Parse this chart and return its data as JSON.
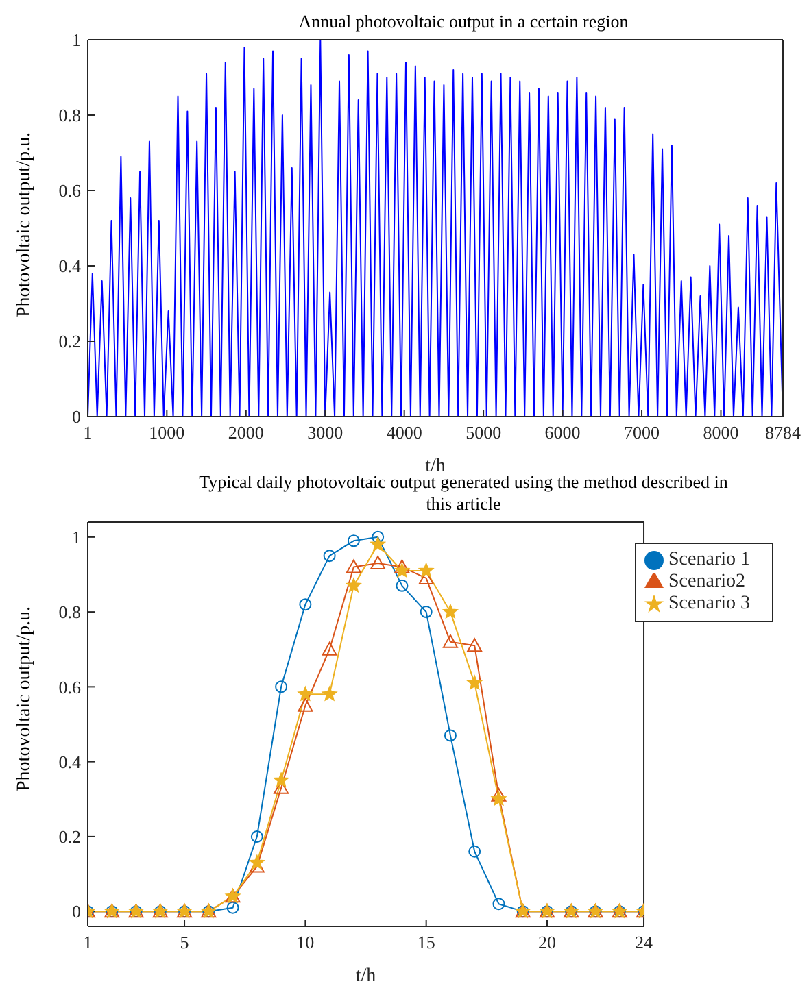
{
  "chart_data": [
    {
      "type": "line",
      "title": "Annual photovoltaic output in a certain region",
      "xlabel": "t/h",
      "ylabel": "Photovoltaic output/p.u.",
      "xlim": [
        1,
        8784
      ],
      "xticks": [
        1,
        1000,
        2000,
        3000,
        4000,
        5000,
        6000,
        7000,
        8000,
        8784
      ],
      "ylim": [
        0,
        1
      ],
      "yticks": [
        0,
        0.2,
        0.4,
        0.6,
        0.8,
        1
      ],
      "grid": false,
      "legend": false,
      "marker": "none",
      "x": [
        1,
        60,
        120,
        180,
        240,
        300,
        360,
        420,
        480,
        540,
        600,
        660,
        720,
        780,
        840,
        900,
        960,
        1020,
        1080,
        1140,
        1200,
        1260,
        1320,
        1380,
        1440,
        1500,
        1560,
        1620,
        1680,
        1740,
        1800,
        1860,
        1920,
        1980,
        2040,
        2100,
        2160,
        2220,
        2280,
        2340,
        2400,
        2460,
        2520,
        2580,
        2640,
        2700,
        2760,
        2820,
        2880,
        2940,
        3000,
        3060,
        3120,
        3180,
        3240,
        3300,
        3360,
        3420,
        3480,
        3540,
        3600,
        3660,
        3720,
        3780,
        3840,
        3900,
        3960,
        4020,
        4080,
        4140,
        4200,
        4260,
        4320,
        4380,
        4440,
        4500,
        4560,
        4620,
        4680,
        4740,
        4800,
        4860,
        4920,
        4980,
        5040,
        5100,
        5160,
        5220,
        5280,
        5340,
        5400,
        5460,
        5520,
        5580,
        5640,
        5700,
        5760,
        5820,
        5880,
        5940,
        6000,
        6060,
        6120,
        6180,
        6240,
        6300,
        6360,
        6420,
        6480,
        6540,
        6600,
        6660,
        6720,
        6780,
        6840,
        6900,
        6960,
        7020,
        7080,
        7140,
        7200,
        7260,
        7320,
        7380,
        7440,
        7500,
        7560,
        7620,
        7680,
        7740,
        7800,
        7860,
        7920,
        7980,
        8040,
        8100,
        8160,
        8220,
        8280,
        8340,
        8400,
        8460,
        8520,
        8580,
        8640,
        8700,
        8784
      ],
      "series": [
        {
          "color": "#0000ff",
          "values": [
            0,
            0.38,
            0,
            0.36,
            0,
            0.52,
            0,
            0.69,
            0,
            0.58,
            0,
            0.65,
            0,
            0.73,
            0,
            0.52,
            0,
            0.28,
            0,
            0.85,
            0,
            0.81,
            0,
            0.73,
            0,
            0.91,
            0,
            0.82,
            0,
            0.94,
            0,
            0.65,
            0,
            0.98,
            0,
            0.87,
            0,
            0.95,
            0,
            0.97,
            0,
            0.8,
            0,
            0.66,
            0,
            0.95,
            0,
            0.88,
            0,
            1,
            0,
            0.33,
            0,
            0.89,
            0,
            0.96,
            0,
            0.84,
            0,
            0.97,
            0,
            0.91,
            0,
            0.9,
            0,
            0.91,
            0,
            0.94,
            0,
            0.93,
            0,
            0.9,
            0,
            0.89,
            0,
            0.88,
            0,
            0.92,
            0,
            0.91,
            0,
            0.9,
            0,
            0.91,
            0,
            0.89,
            0,
            0.91,
            0,
            0.9,
            0,
            0.89,
            0,
            0.86,
            0,
            0.87,
            0,
            0.85,
            0,
            0.86,
            0,
            0.89,
            0,
            0.9,
            0,
            0.86,
            0,
            0.85,
            0,
            0.82,
            0,
            0.79,
            0,
            0.82,
            0,
            0.43,
            0,
            0.35,
            0,
            0.75,
            0,
            0.71,
            0,
            0.72,
            0,
            0.36,
            0,
            0.37,
            0,
            0.32,
            0,
            0.4,
            0,
            0.51,
            0,
            0.48,
            0,
            0.29,
            0,
            0.58,
            0,
            0.56,
            0,
            0.53,
            0,
            0.62,
            0
          ]
        }
      ]
    },
    {
      "type": "line",
      "title": "Typical daily photovoltaic output generated using the method described in this article",
      "xlabel": "t/h",
      "ylabel": "Photovoltaic output/p.u.",
      "xlim": [
        1,
        24
      ],
      "xticks": [
        1,
        5,
        10,
        15,
        20,
        24
      ],
      "ylim": [
        -0.04,
        1.04
      ],
      "yticks": [
        0,
        0.2,
        0.4,
        0.6,
        0.8,
        1
      ],
      "grid": false,
      "legend": "top right",
      "x": [
        1,
        2,
        3,
        4,
        5,
        6,
        7,
        8,
        9,
        10,
        11,
        12,
        13,
        14,
        15,
        16,
        17,
        18,
        19,
        20,
        21,
        22,
        23,
        24
      ],
      "series": [
        {
          "name": "Scenario 1",
          "color": "#0072bd",
          "marker": "circle",
          "values": [
            0,
            0,
            0,
            0,
            0,
            0,
            0.01,
            0.2,
            0.6,
            0.82,
            0.95,
            0.99,
            1,
            0.87,
            0.8,
            0.47,
            0.16,
            0.02,
            0,
            0,
            0,
            0,
            0,
            0
          ]
        },
        {
          "name": "Scenario2",
          "color": "#d95319",
          "marker": "triangle",
          "values": [
            0,
            0,
            0,
            0,
            0,
            0,
            0.04,
            0.12,
            0.33,
            0.55,
            0.7,
            0.92,
            0.93,
            0.92,
            0.89,
            0.72,
            0.71,
            0.31,
            0,
            0,
            0,
            0,
            0,
            0
          ]
        },
        {
          "name": "Scenario 3",
          "color": "#edb120",
          "marker": "star",
          "values": [
            0,
            0,
            0,
            0,
            0,
            0,
            0.04,
            0.13,
            0.35,
            0.58,
            0.58,
            0.87,
            0.98,
            0.91,
            0.91,
            0.8,
            0.61,
            0.3,
            0,
            0,
            0,
            0,
            0,
            0
          ]
        }
      ]
    }
  ]
}
